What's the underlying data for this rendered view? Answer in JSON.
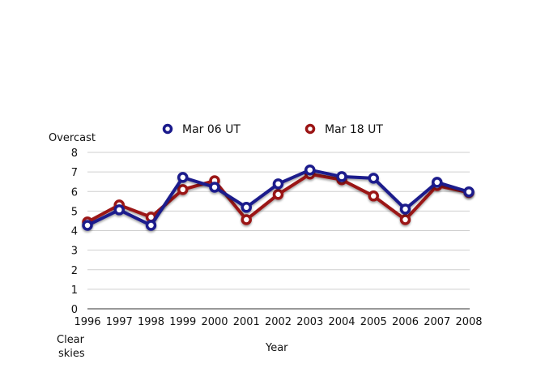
{
  "chart_data": {
    "type": "line",
    "title": "",
    "xlabel": "Year",
    "ylabel": "Overcast",
    "ylabel_bottom": [
      "Clear",
      "skies"
    ],
    "x": [
      "1996",
      "1997",
      "1998",
      "1999",
      "2000",
      "2001",
      "2002",
      "2003",
      "2004",
      "2005",
      "2006",
      "2007",
      "2008"
    ],
    "ylim": [
      0,
      8
    ],
    "yticks": [
      "0",
      "1",
      "2",
      "3",
      "4",
      "5",
      "6",
      "7",
      "8"
    ],
    "grid": true,
    "legend_position": "top",
    "series": [
      {
        "name": "Mar 06 UT",
        "color": "#1a1a8c",
        "values": [
          4.27,
          5.06,
          4.27,
          6.72,
          6.22,
          5.19,
          6.39,
          7.1,
          6.76,
          6.68,
          5.1,
          6.47,
          5.98
        ]
      },
      {
        "name": "Mar 18 UT",
        "color": "#9b1414",
        "values": [
          4.44,
          5.31,
          4.69,
          6.1,
          6.55,
          4.56,
          5.85,
          6.89,
          6.6,
          5.77,
          4.56,
          6.3,
          5.95
        ]
      }
    ]
  }
}
